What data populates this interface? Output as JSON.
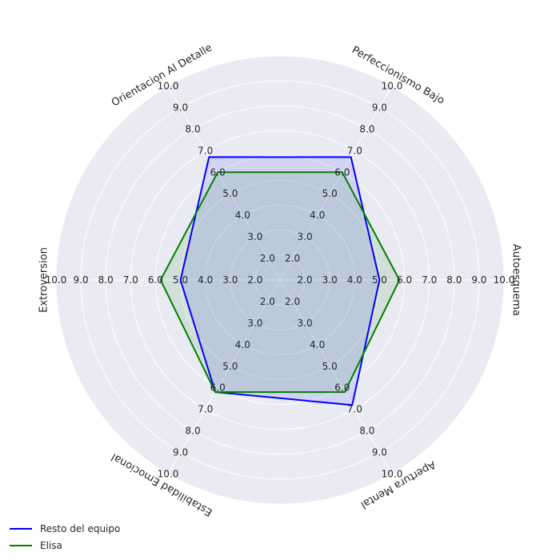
{
  "chart_data": {
    "type": "radar",
    "categories": [
      "Autoesquema",
      "Perfeccionismo Bajo",
      "Orientacion Al Detalle",
      "Extroversion",
      "Estabilidad Emocional",
      "Apertura Mental"
    ],
    "tick_labels": [
      "2.0",
      "3.0",
      "4.0",
      "5.0",
      "6.0",
      "7.0",
      "8.0",
      "9.0",
      "10.0"
    ],
    "rlim": [
      1,
      10
    ],
    "grid": true,
    "legend_position": "bottom-left",
    "series": [
      {
        "name": "Resto del equipo",
        "color": "#0000ff",
        "values": [
          5.0,
          6.7,
          6.7,
          5.0,
          6.2,
          6.8
        ]
      },
      {
        "name": "Elisa",
        "color": "#008000",
        "values": [
          5.8,
          6.0,
          6.0,
          5.8,
          6.2,
          6.2
        ]
      }
    ]
  }
}
